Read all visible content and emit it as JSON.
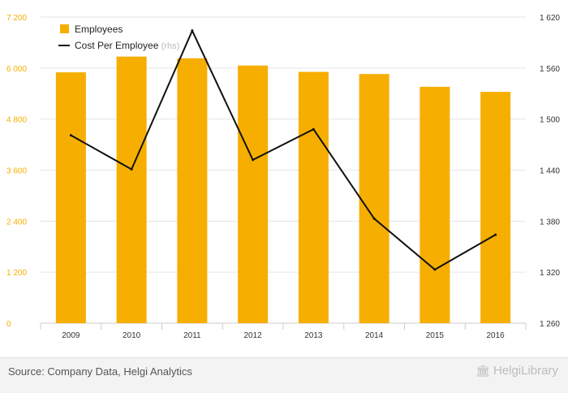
{
  "chart_data": {
    "type": "bar+line",
    "categories": [
      "2009",
      "2010",
      "2011",
      "2012",
      "2013",
      "2014",
      "2015",
      "2016"
    ],
    "series": [
      {
        "name": "Employees",
        "type": "bar",
        "axis": "left",
        "color": "#f6ae00",
        "values": [
          5900,
          6270,
          6230,
          6060,
          5910,
          5860,
          5560,
          5440
        ]
      },
      {
        "name": "Cost Per Employee",
        "name_suffix": "(rhs)",
        "type": "line",
        "axis": "right",
        "color": "#111111",
        "values": [
          1481,
          1441,
          1604,
          1452,
          1488,
          1383,
          1323,
          1364
        ]
      }
    ],
    "y_left": {
      "lim": [
        0,
        7200
      ],
      "ticks": [
        "0",
        "1 200",
        "2 400",
        "3 600",
        "4 800",
        "6 000",
        "7 200"
      ]
    },
    "y_right": {
      "lim": [
        1260,
        1620
      ],
      "ticks": [
        "1 260",
        "1 320",
        "1 380",
        "1 440",
        "1 500",
        "1 560",
        "1 620"
      ]
    },
    "grid": true,
    "legend_position": "top-left",
    "tick_color": "#f6ae00"
  },
  "footer": {
    "source": "Source: Company Data, Helgi Analytics",
    "brand": "HelgiLibrary",
    "brand_icon": "library-building-icon"
  }
}
